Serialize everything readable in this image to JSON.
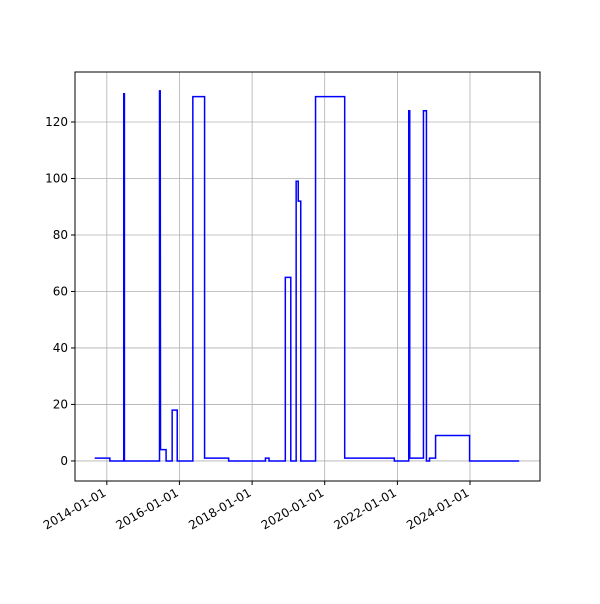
{
  "chart_data": {
    "type": "line",
    "grid": true,
    "x": [
      "2013-09-01",
      "2014-02-01",
      "2014-02-01",
      "2014-06-20",
      "2014-06-20",
      "2014-06-27",
      "2014-06-27",
      "2015-06-15",
      "2015-06-15",
      "2015-06-22",
      "2015-06-25",
      "2015-08-20",
      "2015-08-20",
      "2015-10-20",
      "2015-10-20",
      "2015-12-10",
      "2015-12-10",
      "2016-05-15",
      "2016-05-15",
      "2016-09-10",
      "2016-09-10",
      "2017-05-10",
      "2017-05-10",
      "2018-05-15",
      "2018-05-15",
      "2018-06-20",
      "2018-06-20",
      "2018-12-01",
      "2018-12-01",
      "2019-01-25",
      "2019-01-25",
      "2019-03-20",
      "2019-03-20",
      "2019-04-10",
      "2019-04-10",
      "2019-05-05",
      "2019-05-05",
      "2019-10-01",
      "2019-10-01",
      "2020-07-20",
      "2020-07-20",
      "2021-12-01",
      "2021-12-01",
      "2022-04-25",
      "2022-04-25",
      "2022-05-05",
      "2022-05-05",
      "2022-09-20",
      "2022-09-20",
      "2022-10-20",
      "2022-10-20",
      "2022-11-20",
      "2022-11-20",
      "2023-01-20",
      "2023-01-20",
      "2023-12-28",
      "2023-12-28",
      "2025-05-10"
    ],
    "series": [
      {
        "color": "#0000ff",
        "values": [
          1,
          1,
          0,
          0,
          130,
          130,
          0,
          0,
          131,
          131,
          4,
          4,
          0,
          0,
          18,
          18,
          0,
          0,
          129,
          129,
          1,
          1,
          0,
          0,
          1,
          1,
          0,
          0,
          65,
          65,
          0,
          0,
          99,
          99,
          92,
          92,
          0,
          0,
          129,
          129,
          1,
          1,
          0,
          0,
          124,
          124,
          1,
          1,
          124,
          124,
          0,
          0,
          1,
          1,
          9,
          9,
          0,
          0
        ]
      }
    ],
    "xlim": [
      "2013-02-15",
      "2025-12-05"
    ],
    "xticks": [
      "2014-01-01",
      "2016-01-01",
      "2018-01-01",
      "2020-01-01",
      "2022-01-01",
      "2024-01-01"
    ],
    "ylim": [
      -7.1,
      137.7
    ],
    "yticks": [
      0,
      20,
      40,
      60,
      80,
      100,
      120
    ]
  }
}
